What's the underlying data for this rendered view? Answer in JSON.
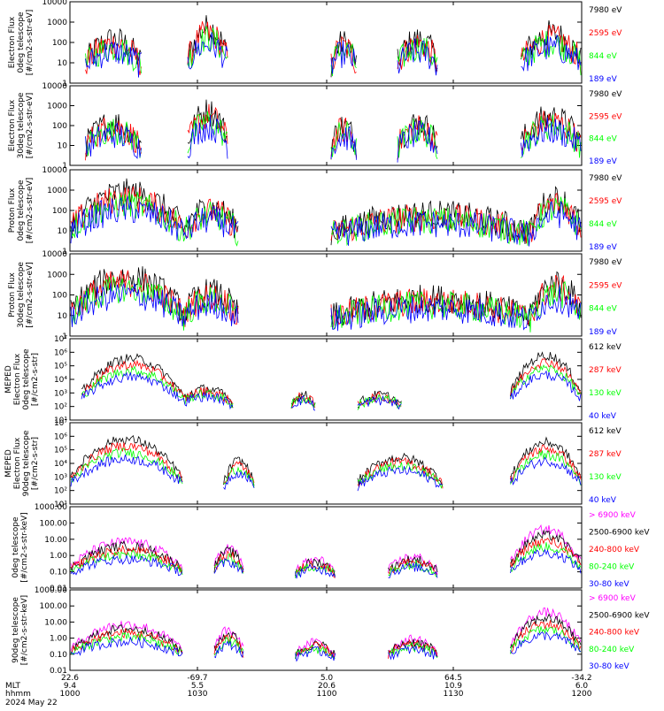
{
  "colors": {
    "black": "#000000",
    "red": "#ff0000",
    "green": "#00ff00",
    "blue": "#0000ff",
    "magenta": "#ff00ff"
  },
  "xaxis": {
    "row_labels": [
      "",
      "MLT",
      "hhmm",
      "2024 May 22"
    ],
    "ticks": [
      {
        "lat": "22.6",
        "mlt": "9.4",
        "hhmm": "1000"
      },
      {
        "lat": "-69.7",
        "mlt": "5.5",
        "hhmm": "1030"
      },
      {
        "lat": "5.0",
        "mlt": "20.6",
        "hhmm": "1100"
      },
      {
        "lat": "64.5",
        "mlt": "10.9",
        "hhmm": "1130"
      },
      {
        "lat": "-34.2",
        "mlt": "6.0",
        "hhmm": "1200"
      }
    ]
  },
  "chart_data": [
    {
      "type": "line",
      "scale": "log",
      "ylabel": [
        "Electron Flux",
        "0deg telescope",
        "[#/cm2-s-str-eV]"
      ],
      "ytick_labels": [
        "1",
        "10",
        "100",
        "1000",
        "10000"
      ],
      "ylim": [
        1,
        10000
      ],
      "series": [
        {
          "name": "7980 eV",
          "color": "black"
        },
        {
          "name": "2595 eV",
          "color": "red"
        },
        {
          "name": "844 eV",
          "color": "green"
        },
        {
          "name": "189 eV",
          "color": "blue"
        }
      ]
    },
    {
      "type": "line",
      "scale": "log",
      "ylabel": [
        "Electron Flux",
        "30deg telescope",
        "[#/cm2-s-str-eV]"
      ],
      "ytick_labels": [
        "1",
        "10",
        "100",
        "1000",
        "10000"
      ],
      "ylim": [
        1,
        10000
      ],
      "series": [
        {
          "name": "7980 eV",
          "color": "black"
        },
        {
          "name": "2595 eV",
          "color": "red"
        },
        {
          "name": "844 eV",
          "color": "green"
        },
        {
          "name": "189 eV",
          "color": "blue"
        }
      ]
    },
    {
      "type": "line",
      "scale": "log",
      "ylabel": [
        "Proton Flux",
        "0deg telescope",
        "[#/cm2-s-str-eV]"
      ],
      "ytick_labels": [
        "1",
        "10",
        "100",
        "1000",
        "10000"
      ],
      "ylim": [
        1,
        10000
      ],
      "series": [
        {
          "name": "7980 eV",
          "color": "black"
        },
        {
          "name": "2595 eV",
          "color": "red"
        },
        {
          "name": "844 eV",
          "color": "green"
        },
        {
          "name": "189 eV",
          "color": "blue"
        }
      ]
    },
    {
      "type": "line",
      "scale": "log",
      "ylabel": [
        "Proton Flux",
        "30deg telescope",
        "[#/cm2-s-str-eV]"
      ],
      "ytick_labels": [
        "1",
        "10",
        "100",
        "1000",
        "10000"
      ],
      "ylim": [
        1,
        10000
      ],
      "series": [
        {
          "name": "7980 eV",
          "color": "black"
        },
        {
          "name": "2595 eV",
          "color": "red"
        },
        {
          "name": "844 eV",
          "color": "green"
        },
        {
          "name": "189 eV",
          "color": "blue"
        }
      ]
    },
    {
      "type": "line",
      "scale": "log",
      "ylabel": [
        "MEPED",
        "Electron Flux",
        "0deg telescope",
        "[#/cm2-s-str]"
      ],
      "ytick_labels": [
        "10¹",
        "10²",
        "10³",
        "10⁴",
        "10⁵",
        "10⁶",
        "10⁷"
      ],
      "ylim": [
        10,
        10000000
      ],
      "series": [
        {
          "name": "612 keV",
          "color": "black"
        },
        {
          "name": "287 keV",
          "color": "red"
        },
        {
          "name": "130 keV",
          "color": "green"
        },
        {
          "name": "40 keV",
          "color": "blue"
        }
      ]
    },
    {
      "type": "line",
      "scale": "log",
      "ylabel": [
        "MEPED",
        "Electron Flux",
        "90deg telescope",
        "[#/cm2-s-str]"
      ],
      "ytick_labels": [
        "10¹",
        "10²",
        "10³",
        "10⁴",
        "10⁵",
        "10⁶",
        "10⁷"
      ],
      "ylim": [
        10,
        10000000
      ],
      "series": [
        {
          "name": "612 keV",
          "color": "black"
        },
        {
          "name": "287 keV",
          "color": "red"
        },
        {
          "name": "130 keV",
          "color": "green"
        },
        {
          "name": "40 keV",
          "color": "blue"
        }
      ]
    },
    {
      "type": "line",
      "scale": "log",
      "ylabel": [
        "0deg telescope",
        "[#/cm2-s-str-keV]"
      ],
      "ytick_labels": [
        "0.01",
        "0.10",
        "1.00",
        "10.00",
        "100.00",
        "1000.00"
      ],
      "ylim": [
        0.01,
        1000
      ],
      "series": [
        {
          "name": "> 6900 keV",
          "color": "magenta"
        },
        {
          "name": "2500-6900 keV",
          "color": "black"
        },
        {
          "name": "240-800 keV",
          "color": "red"
        },
        {
          "name": "80-240 keV",
          "color": "green"
        },
        {
          "name": "30-80 keV",
          "color": "blue"
        }
      ]
    },
    {
      "type": "line",
      "scale": "log",
      "ylabel": [
        "90deg telescope",
        "[#/cm2-s-str-keV]"
      ],
      "ytick_labels": [
        "0.01",
        "0.10",
        "1.00",
        "10.00",
        "100.00",
        "1000.00"
      ],
      "ylim": [
        0.01,
        1000
      ],
      "series": [
        {
          "name": "> 6900 keV",
          "color": "magenta"
        },
        {
          "name": "2500-6900 keV",
          "color": "black"
        },
        {
          "name": "240-800 keV",
          "color": "red"
        },
        {
          "name": "80-240 keV",
          "color": "green"
        },
        {
          "name": "30-80 keV",
          "color": "blue"
        }
      ]
    }
  ]
}
